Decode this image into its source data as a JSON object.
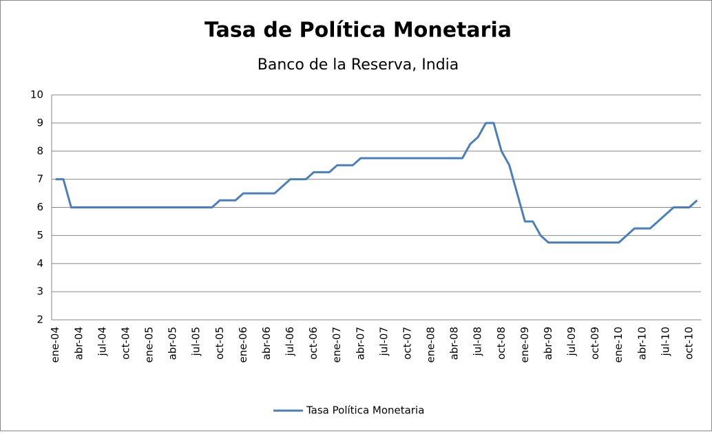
{
  "chart_data": {
    "type": "line",
    "title": "Tasa de Política Monetaria",
    "subtitle": "Banco de la Reserva, India",
    "categories": [
      "ene-04",
      null,
      null,
      "abr-04",
      null,
      null,
      "jul-04",
      null,
      null,
      "oct-04",
      null,
      null,
      "ene-05",
      null,
      null,
      "abr-05",
      null,
      null,
      "jul-05",
      null,
      null,
      "oct-05",
      null,
      null,
      "ene-06",
      null,
      null,
      "abr-06",
      null,
      null,
      "jul-06",
      null,
      null,
      "oct-06",
      null,
      null,
      "ene-07",
      null,
      null,
      "abr-07",
      null,
      null,
      "jul-07",
      null,
      null,
      "oct-07",
      null,
      null,
      "ene-08",
      null,
      null,
      "abr-08",
      null,
      null,
      "jul-08",
      null,
      null,
      "oct-08",
      null,
      null,
      "ene-09",
      null,
      null,
      "abr-09",
      null,
      null,
      "jul-09",
      null,
      null,
      "oct-09",
      null,
      null,
      "ene-10",
      null,
      null,
      "abr-10",
      null,
      null,
      "jul-10",
      null,
      null,
      "oct-10",
      null
    ],
    "series": [
      {
        "name": "Tasa Política Monetaria",
        "color": "#4a7ebb",
        "values": [
          7,
          7,
          6,
          6,
          6,
          6,
          6,
          6,
          6,
          6,
          6,
          6,
          6,
          6,
          6,
          6,
          6,
          6,
          6,
          6,
          6,
          6.25,
          6.25,
          6.25,
          6.5,
          6.5,
          6.5,
          6.5,
          6.5,
          6.75,
          7,
          7,
          7,
          7.25,
          7.25,
          7.25,
          7.5,
          7.5,
          7.5,
          7.75,
          7.75,
          7.75,
          7.75,
          7.75,
          7.75,
          7.75,
          7.75,
          7.75,
          7.75,
          7.75,
          7.75,
          7.75,
          7.75,
          8.25,
          8.5,
          9,
          9,
          8,
          7.5,
          6.5,
          5.5,
          5.5,
          5,
          4.75,
          4.75,
          4.75,
          4.75,
          4.75,
          4.75,
          4.75,
          4.75,
          4.75,
          4.75,
          5,
          5.25,
          5.25,
          5.25,
          5.5,
          5.75,
          6,
          6,
          6,
          6.25
        ]
      }
    ],
    "ylim": [
      2,
      10
    ],
    "yticks": [
      2,
      3,
      4,
      5,
      6,
      7,
      8,
      9,
      10
    ],
    "grid": true,
    "legend": "bottom"
  }
}
